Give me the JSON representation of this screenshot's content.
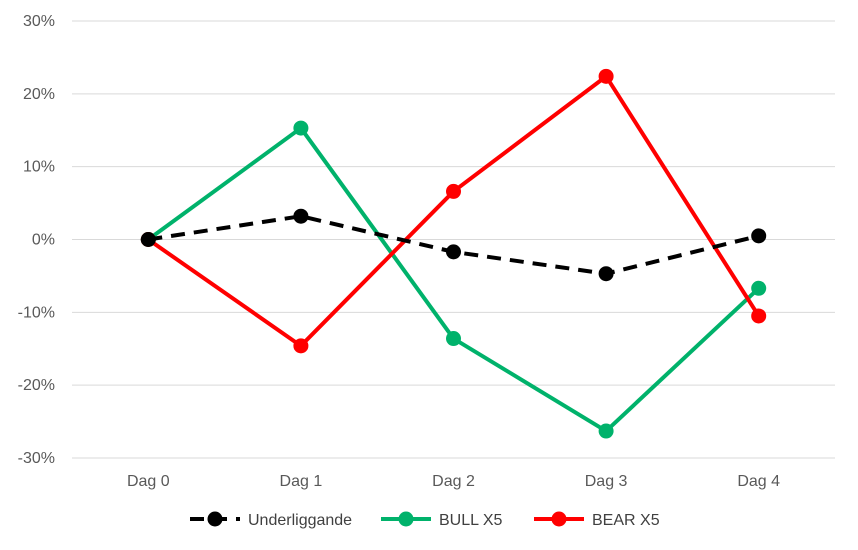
{
  "chart_data": {
    "type": "line",
    "categories": [
      "Dag 0",
      "Dag 1",
      "Dag 2",
      "Dag 3",
      "Dag 4"
    ],
    "y_ticks": [
      "30%",
      "20%",
      "10%",
      "0%",
      "-10%",
      "-20%",
      "-30%"
    ],
    "ylim": [
      -30,
      30
    ],
    "grid": true,
    "legend_position": "bottom",
    "series": [
      {
        "name": "Underliggande",
        "values": [
          0,
          3.2,
          -1.7,
          -4.7,
          0.5
        ],
        "color": "#000000",
        "dash": true
      },
      {
        "name": "BULL X5",
        "values": [
          0,
          15.3,
          -13.6,
          -26.3,
          -6.7
        ],
        "color": "#00b26b",
        "dash": false
      },
      {
        "name": "BEAR X5",
        "values": [
          0,
          -14.6,
          6.6,
          22.4,
          -10.5
        ],
        "color": "#ff0000",
        "dash": false
      }
    ]
  }
}
